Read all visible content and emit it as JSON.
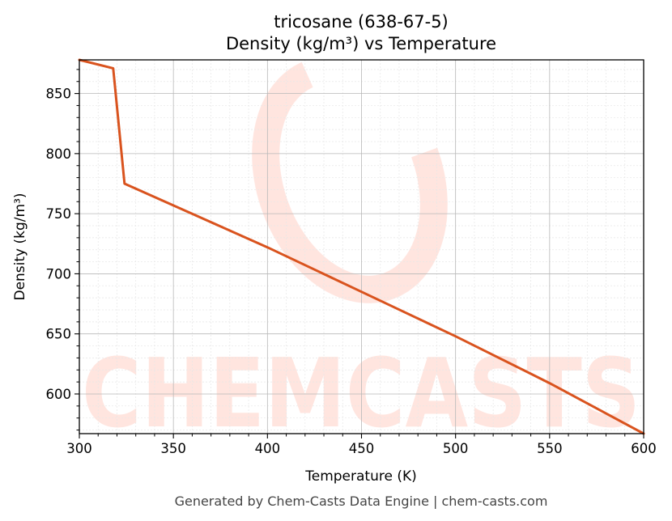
{
  "chart_data": {
    "type": "line",
    "title_line1": "tricosane (638-67-5)",
    "title_line2": "Density (kg/m³) vs Temperature",
    "xlabel": "Temperature (K)",
    "ylabel": "Density (kg/m³)",
    "xlim": [
      300,
      600
    ],
    "ylim": [
      567,
      878
    ],
    "x_ticks": [
      300,
      350,
      400,
      450,
      500,
      550,
      600
    ],
    "y_ticks": [
      600,
      650,
      700,
      750,
      800,
      850
    ],
    "x_tick_labels": [
      "300",
      "350",
      "400",
      "450",
      "500",
      "550",
      "600"
    ],
    "y_tick_labels": [
      "600",
      "650",
      "700",
      "750",
      "800",
      "850"
    ],
    "grid": true,
    "series": [
      {
        "color": "#d9531e",
        "x": [
          300,
          318,
          324,
          400,
          450,
          500,
          550,
          600
        ],
        "y": [
          878,
          871,
          775,
          722,
          685,
          648,
          609,
          567
        ]
      }
    ]
  },
  "watermark": {
    "text": "CHEMCASTS"
  },
  "footer": {
    "text": "Generated by Chem-Casts Data Engine | chem-casts.com"
  }
}
